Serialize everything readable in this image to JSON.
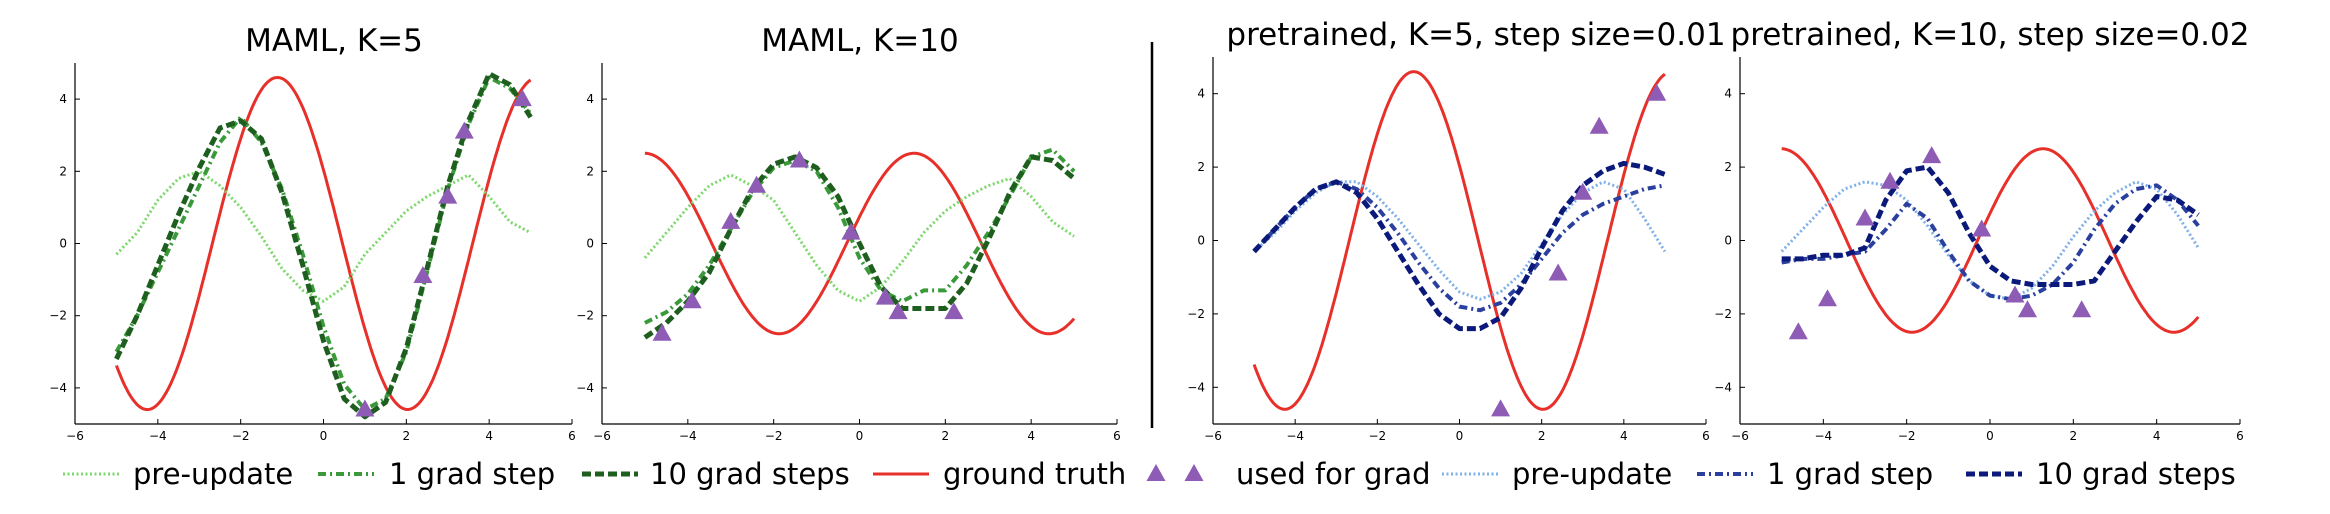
{
  "chart_data": [
    {
      "type": "line",
      "title": "MAML, K=5",
      "xlim": [
        -6,
        6
      ],
      "ylim": [
        -5,
        5
      ],
      "xticks": [
        "−6",
        "−4",
        "−2",
        "0",
        "2",
        "4",
        "6"
      ],
      "yticks": [
        "−4",
        "−2",
        "0",
        "2",
        "4"
      ],
      "ground_truth": {
        "amplitude": 4.6,
        "phase": 3.6
      },
      "series": [
        {
          "name": "pre-update",
          "style": "pre",
          "x": [
            -5,
            -4.5,
            -4,
            -3.5,
            -3,
            -2.5,
            -2,
            -1.5,
            -1,
            -0.5,
            0,
            0.5,
            1,
            1.5,
            2,
            2.5,
            3,
            3.5,
            4,
            4.5,
            5
          ],
          "y": [
            -0.3,
            0.3,
            1.2,
            1.8,
            2.0,
            1.6,
            1.0,
            0.2,
            -0.7,
            -1.3,
            -1.6,
            -1.2,
            -0.3,
            0.3,
            0.9,
            1.3,
            1.6,
            1.9,
            1.3,
            0.6,
            0.3
          ]
        },
        {
          "name": "1 grad step",
          "style": "one",
          "x": [
            -5,
            -4.5,
            -4,
            -3.5,
            -3,
            -2.5,
            -2,
            -1.5,
            -1,
            -0.5,
            0,
            0.5,
            1,
            1.5,
            2,
            2.5,
            3,
            3.5,
            4,
            4.5,
            5
          ],
          "y": [
            -3.0,
            -2.0,
            -0.8,
            0.4,
            1.6,
            2.8,
            3.5,
            2.8,
            1.5,
            -0.3,
            -2.3,
            -3.9,
            -4.6,
            -4.3,
            -3.0,
            -0.8,
            1.5,
            3.3,
            4.6,
            4.3,
            3.6
          ]
        },
        {
          "name": "10 grad steps",
          "style": "ten",
          "x": [
            -5,
            -4.5,
            -4,
            -3.5,
            -3,
            -2.5,
            -2,
            -1.5,
            -1,
            -0.5,
            0,
            0.5,
            1,
            1.5,
            2,
            2.5,
            3,
            3.5,
            4,
            4.5,
            5
          ],
          "y": [
            -3.2,
            -2.0,
            -0.6,
            0.8,
            2.1,
            3.2,
            3.4,
            2.9,
            1.4,
            -0.6,
            -2.7,
            -4.3,
            -4.8,
            -4.4,
            -2.9,
            -0.7,
            1.6,
            3.4,
            4.7,
            4.4,
            3.5
          ]
        }
      ],
      "grad_points": {
        "x": [
          1.0,
          2.4,
          3.0,
          3.4,
          4.8
        ],
        "y": [
          -4.6,
          -0.9,
          1.3,
          3.1,
          4.0
        ]
      }
    },
    {
      "type": "line",
      "title": "MAML, K=10",
      "xlim": [
        -6,
        6
      ],
      "ylim": [
        -5,
        5
      ],
      "xticks": [
        "−6",
        "−4",
        "−2",
        "0",
        "2",
        "4",
        "6"
      ],
      "yticks": [
        "−4",
        "−2",
        "0",
        "2",
        "4"
      ],
      "ground_truth": {
        "amplitude": 2.5,
        "phase": -0.3
      },
      "series": [
        {
          "name": "pre-update",
          "style": "pre",
          "x": [
            -5,
            -4.5,
            -4,
            -3.5,
            -3,
            -2.5,
            -2,
            -1.5,
            -1,
            -0.5,
            0,
            0.5,
            1,
            1.5,
            2,
            2.5,
            3,
            3.5,
            4,
            4.5,
            5
          ],
          "y": [
            -0.4,
            0.3,
            1.0,
            1.6,
            1.9,
            1.6,
            1.2,
            0.3,
            -0.6,
            -1.3,
            -1.6,
            -1.2,
            -0.5,
            0.3,
            0.9,
            1.3,
            1.6,
            1.8,
            1.3,
            0.6,
            0.2
          ]
        },
        {
          "name": "1 grad step",
          "style": "one",
          "x": [
            -5,
            -4.5,
            -4,
            -3.5,
            -3,
            -2.5,
            -2,
            -1.5,
            -1,
            -0.5,
            0,
            0.5,
            1,
            1.5,
            2,
            2.5,
            3,
            3.5,
            4,
            4.5,
            5
          ],
          "y": [
            -2.2,
            -1.9,
            -1.4,
            -0.6,
            0.4,
            1.4,
            2.1,
            2.3,
            2.0,
            1.0,
            -0.4,
            -1.3,
            -1.6,
            -1.3,
            -1.3,
            -0.6,
            0.3,
            1.3,
            2.4,
            2.6,
            2.0
          ]
        },
        {
          "name": "10 grad steps",
          "style": "ten",
          "x": [
            -5,
            -4.5,
            -4,
            -3.5,
            -3,
            -2.5,
            -2,
            -1.5,
            -1,
            -0.5,
            0,
            0.5,
            1,
            1.5,
            2,
            2.5,
            3,
            3.5,
            4,
            4.5,
            5
          ],
          "y": [
            -2.6,
            -2.2,
            -1.6,
            -0.8,
            0.4,
            1.5,
            2.2,
            2.4,
            2.1,
            1.3,
            0.0,
            -1.2,
            -1.8,
            -1.8,
            -1.8,
            -1.1,
            0.1,
            1.4,
            2.4,
            2.3,
            1.8
          ]
        }
      ],
      "grad_points": {
        "x": [
          -4.6,
          -3.9,
          -3.0,
          -2.4,
          -1.4,
          -0.2,
          0.6,
          0.9,
          2.2
        ],
        "y": [
          -2.5,
          -1.6,
          0.6,
          1.6,
          2.3,
          0.3,
          -1.5,
          -1.9,
          -1.9
        ]
      }
    },
    {
      "type": "line",
      "title": "pretrained, K=5, step size=0.01",
      "xlim": [
        -6,
        6
      ],
      "ylim": [
        -5,
        5
      ],
      "xticks": [
        "−6",
        "−4",
        "−2",
        "0",
        "2",
        "4",
        "6"
      ],
      "yticks": [
        "−4",
        "−2",
        "0",
        "2",
        "4"
      ],
      "ground_truth": {
        "amplitude": 4.6,
        "phase": 3.6
      },
      "series": [
        {
          "name": "pre-update",
          "style": "pre",
          "x": [
            -5,
            -4.5,
            -4,
            -3.5,
            -3,
            -2.5,
            -2,
            -1.5,
            -1,
            -0.5,
            0,
            0.5,
            1,
            1.5,
            2,
            2.5,
            3,
            3.5,
            4,
            4.5,
            5
          ],
          "y": [
            -0.3,
            0.2,
            0.8,
            1.3,
            1.6,
            1.6,
            1.2,
            0.6,
            -0.1,
            -0.8,
            -1.4,
            -1.6,
            -1.4,
            -0.9,
            -0.1,
            0.7,
            1.3,
            1.6,
            1.4,
            0.6,
            -0.3
          ]
        },
        {
          "name": "1 grad step",
          "style": "one",
          "x": [
            -5,
            -4.5,
            -4,
            -3.5,
            -3,
            -2.5,
            -2,
            -1.5,
            -1,
            -0.5,
            0,
            0.5,
            1,
            1.5,
            2,
            2.5,
            3,
            3.5,
            4,
            4.5,
            5
          ],
          "y": [
            -0.3,
            0.3,
            0.9,
            1.4,
            1.6,
            1.4,
            0.9,
            0.2,
            -0.6,
            -1.3,
            -1.8,
            -1.9,
            -1.7,
            -1.2,
            -0.5,
            0.2,
            0.7,
            1.0,
            1.2,
            1.4,
            1.5
          ]
        },
        {
          "name": "10 grad steps",
          "style": "ten",
          "x": [
            -5,
            -4.5,
            -4,
            -3.5,
            -3,
            -2.5,
            -2,
            -1.5,
            -1,
            -0.5,
            0,
            0.5,
            1,
            1.5,
            2,
            2.5,
            3,
            3.5,
            4,
            4.5,
            5
          ],
          "y": [
            -0.3,
            0.3,
            0.9,
            1.4,
            1.6,
            1.3,
            0.6,
            -0.3,
            -1.2,
            -2.0,
            -2.4,
            -2.4,
            -2.1,
            -1.3,
            -0.2,
            0.8,
            1.5,
            1.9,
            2.1,
            2.0,
            1.8
          ]
        }
      ],
      "grad_points": {
        "x": [
          1.0,
          2.4,
          3.0,
          3.4,
          4.8
        ],
        "y": [
          -4.6,
          -0.9,
          1.3,
          3.1,
          4.0
        ]
      }
    },
    {
      "type": "line",
      "title": "pretrained, K=10, step size=0.02",
      "xlim": [
        -6,
        6
      ],
      "ylim": [
        -5,
        5
      ],
      "xticks": [
        "−6",
        "−4",
        "−2",
        "0",
        "2",
        "4",
        "6"
      ],
      "yticks": [
        "−4",
        "−2",
        "0",
        "2",
        "4"
      ],
      "ground_truth": {
        "amplitude": 2.5,
        "phase": -0.3
      },
      "series": [
        {
          "name": "pre-update",
          "style": "pre",
          "x": [
            -5,
            -4.5,
            -4,
            -3.5,
            -3,
            -2.5,
            -2,
            -1.5,
            -1,
            -0.5,
            0,
            0.5,
            1,
            1.5,
            2,
            2.5,
            3,
            3.5,
            4,
            4.5,
            5
          ],
          "y": [
            -0.3,
            0.3,
            0.9,
            1.4,
            1.6,
            1.5,
            1.1,
            0.4,
            -0.4,
            -1.1,
            -1.5,
            -1.6,
            -1.3,
            -0.7,
            0.1,
            0.8,
            1.3,
            1.6,
            1.4,
            0.7,
            -0.2
          ]
        },
        {
          "name": "1 grad step",
          "style": "one",
          "x": [
            -5,
            -4.5,
            -4,
            -3.5,
            -3,
            -2.5,
            -2,
            -1.5,
            -1,
            -0.5,
            0,
            0.5,
            1,
            1.5,
            2,
            2.5,
            3,
            3.5,
            4,
            4.5,
            5
          ],
          "y": [
            -0.6,
            -0.5,
            -0.5,
            -0.4,
            -0.3,
            0.3,
            1.0,
            0.6,
            -0.3,
            -1.1,
            -1.5,
            -1.6,
            -1.5,
            -1.2,
            -0.6,
            0.3,
            1.0,
            1.4,
            1.5,
            1.1,
            0.4
          ]
        },
        {
          "name": "10 grad steps",
          "style": "ten",
          "x": [
            -5,
            -4.5,
            -4,
            -3.5,
            -3,
            -2.5,
            -2,
            -1.5,
            -1,
            -0.5,
            0,
            0.5,
            1,
            1.5,
            2,
            2.5,
            3,
            3.5,
            4,
            4.5,
            5
          ],
          "y": [
            -0.5,
            -0.5,
            -0.4,
            -0.4,
            -0.2,
            1.1,
            1.9,
            2.0,
            1.3,
            0.2,
            -0.7,
            -1.1,
            -1.2,
            -1.2,
            -1.2,
            -1.1,
            -0.3,
            0.5,
            1.2,
            1.1,
            0.7
          ]
        }
      ],
      "grad_points": {
        "x": [
          -4.6,
          -3.9,
          -3.0,
          -2.4,
          -1.4,
          -0.2,
          0.6,
          0.9,
          2.2
        ],
        "y": [
          -2.5,
          -1.6,
          0.6,
          1.6,
          2.3,
          0.3,
          -1.5,
          -1.9,
          -1.9
        ]
      }
    }
  ],
  "legend": {
    "items": [
      {
        "label": "pre-update",
        "style": "pre"
      },
      {
        "label": "1 grad step",
        "style": "one"
      },
      {
        "label": "10 grad steps",
        "style": "ten"
      },
      {
        "label": "ground truth",
        "style": "gt"
      },
      {
        "label": "used for grad",
        "style": "pts"
      },
      {
        "label": "pre-update",
        "style": "pre_b"
      },
      {
        "label": "1 grad step",
        "style": "one_b"
      },
      {
        "label": "10 grad steps",
        "style": "ten_b"
      }
    ]
  },
  "colors": {
    "ground_truth": "#e8302a",
    "points": "#8e5bb5",
    "maml_pre": "#7cd86b",
    "maml_one": "#3a9a3a",
    "maml_ten": "#1e5e1e",
    "pre_pre": "#7fb0e8",
    "pre_one": "#2a3f9e",
    "pre_ten": "#0b1a7a"
  }
}
